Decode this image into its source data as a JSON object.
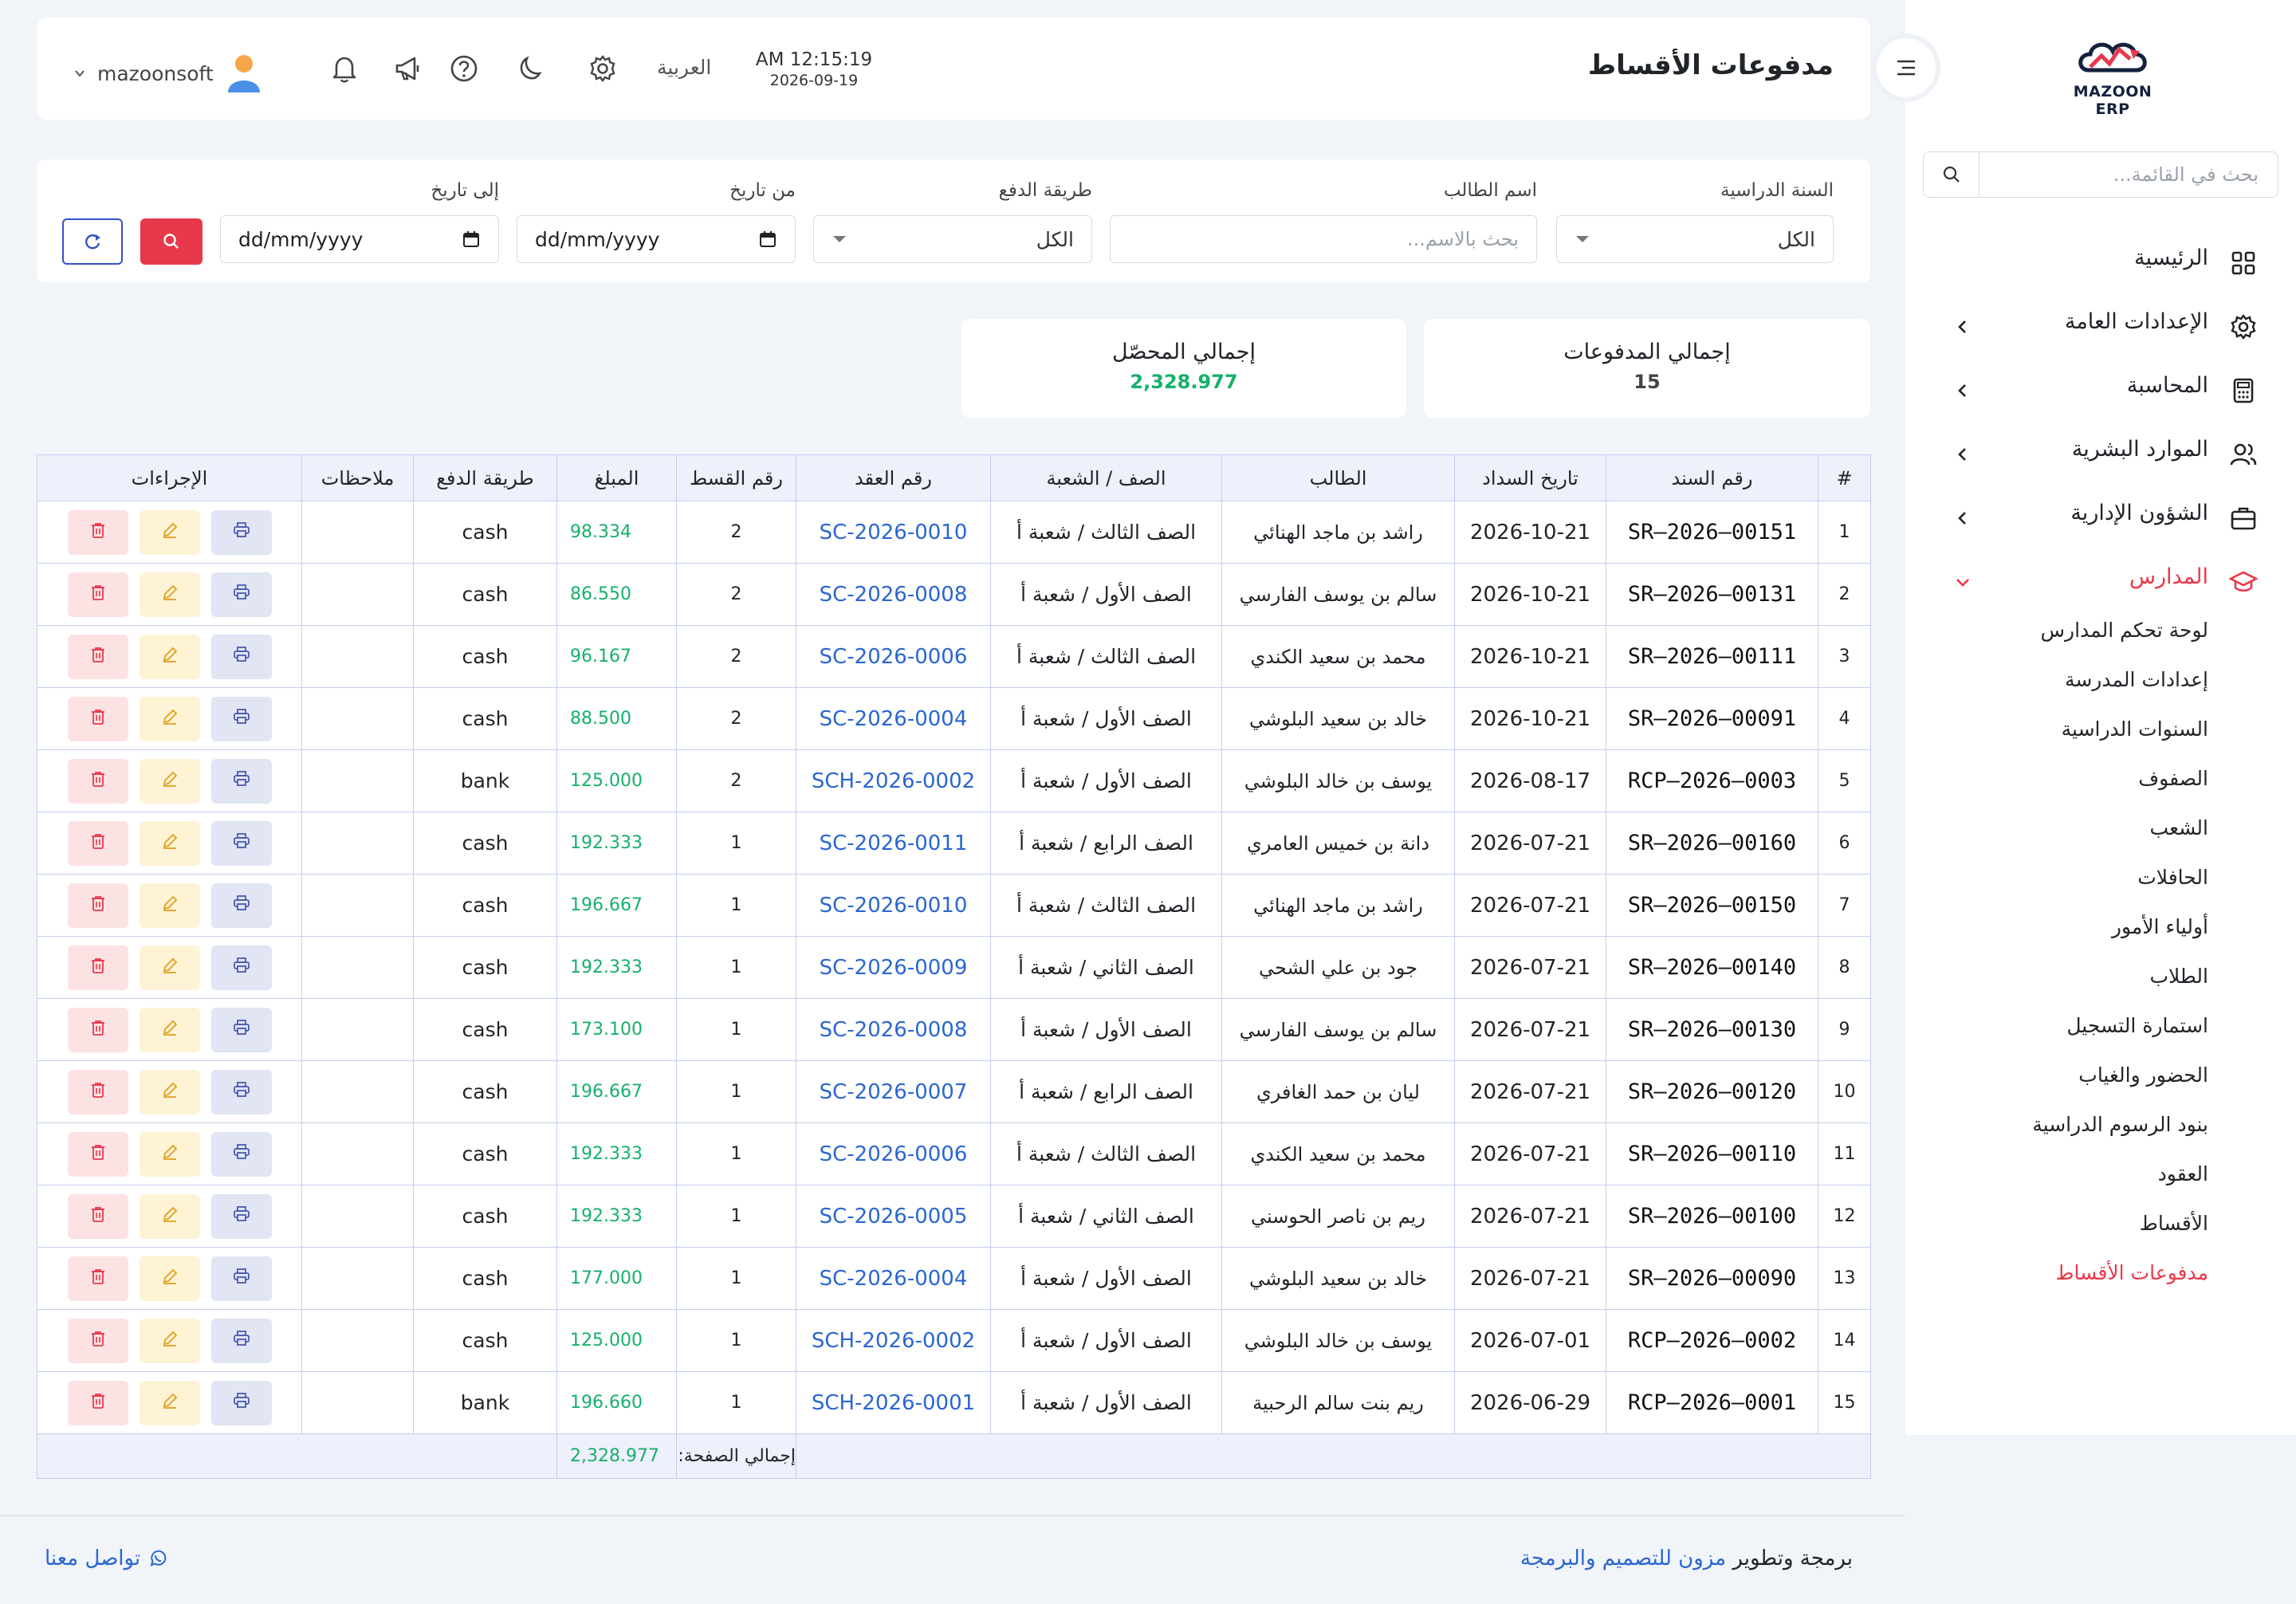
{
  "sidebar": {
    "logo_text": "MAZOON ERP",
    "search_placeholder": "بحث في القائمة...",
    "items": [
      {
        "label": "الرئيسية",
        "icon": "grid-icon"
      },
      {
        "label": "الإعدادات العامة",
        "icon": "gear-icon"
      },
      {
        "label": "المحاسبة",
        "icon": "calculator-icon"
      },
      {
        "label": "الموارد البشرية",
        "icon": "users-icon"
      },
      {
        "label": "الشؤون الإدارية",
        "icon": "briefcase-icon"
      },
      {
        "label": "المدارس",
        "icon": "graduation-cap-icon"
      }
    ],
    "sub_items": [
      "لوحة تحكم المدارس",
      "إعدادات المدرسة",
      "السنوات الدراسية",
      "الصفوف",
      "الشعب",
      "الحافلات",
      "أولياء الأمور",
      "الطلاب",
      "استمارة التسجيل",
      "الحضور والغياب",
      "بنود الرسوم الدراسية",
      "العقود",
      "الأقساط",
      "مدفوعات الأقساط"
    ]
  },
  "header": {
    "title": "مدفوعات الأقساط",
    "time": "AM 12:15:19",
    "date": "2026-09-19",
    "language": "العربية",
    "username": "mazoonsoft"
  },
  "filters": {
    "year_label": "السنة الدراسية",
    "year_value": "الكل",
    "student_label": "اسم الطالب",
    "student_placeholder": "بحث بالاسم...",
    "method_label": "طريقة الدفع",
    "method_value": "الكل",
    "from_label": "من تاريخ",
    "from_value": "dd/mm/yyyy",
    "to_label": "إلى تاريخ",
    "to_value": "dd/mm/yyyy"
  },
  "summary": {
    "payments_label": "إجمالي المدفوعات",
    "payments_value": "15",
    "collected_label": "إجمالي المحصّل",
    "collected_value": "2,328.977"
  },
  "table": {
    "headers": [
      "#",
      "رقم السند",
      "تاريخ السداد",
      "الطالب",
      "الصف / الشعبة",
      "رقم العقد",
      "رقم القسط",
      "المبلغ",
      "طريقة الدفع",
      "ملاحظات",
      "الإجراءات"
    ],
    "rows": [
      [
        "1",
        "SR–2026–00151",
        "2026-10-21",
        "راشد بن ماجد الهنائي",
        "الصف الثالث / شعبة أ",
        "SC-2026-0010",
        "2",
        "98.334",
        "cash",
        ""
      ],
      [
        "2",
        "SR–2026–00131",
        "2026-10-21",
        "سالم بن يوسف الفارسي",
        "الصف الأول / شعبة أ",
        "SC-2026-0008",
        "2",
        "86.550",
        "cash",
        ""
      ],
      [
        "3",
        "SR–2026–00111",
        "2026-10-21",
        "محمد بن سعيد الكندي",
        "الصف الثالث / شعبة أ",
        "SC-2026-0006",
        "2",
        "96.167",
        "cash",
        ""
      ],
      [
        "4",
        "SR–2026–00091",
        "2026-10-21",
        "خالد بن سعيد البلوشي",
        "الصف الأول / شعبة أ",
        "SC-2026-0004",
        "2",
        "88.500",
        "cash",
        ""
      ],
      [
        "5",
        "RCP–2026–0003",
        "2026-08-17",
        "يوسف بن خالد البلوشي",
        "الصف الأول / شعبة أ",
        "SCH-2026-0002",
        "2",
        "125.000",
        "bank",
        ""
      ],
      [
        "6",
        "SR–2026–00160",
        "2026-07-21",
        "دانة بن خميس العامري",
        "الصف الرابع / شعبة أ",
        "SC-2026-0011",
        "1",
        "192.333",
        "cash",
        ""
      ],
      [
        "7",
        "SR–2026–00150",
        "2026-07-21",
        "راشد بن ماجد الهنائي",
        "الصف الثالث / شعبة أ",
        "SC-2026-0010",
        "1",
        "196.667",
        "cash",
        ""
      ],
      [
        "8",
        "SR–2026–00140",
        "2026-07-21",
        "جود بن علي الشحي",
        "الصف الثاني / شعبة أ",
        "SC-2026-0009",
        "1",
        "192.333",
        "cash",
        ""
      ],
      [
        "9",
        "SR–2026–00130",
        "2026-07-21",
        "سالم بن يوسف الفارسي",
        "الصف الأول / شعبة أ",
        "SC-2026-0008",
        "1",
        "173.100",
        "cash",
        ""
      ],
      [
        "10",
        "SR–2026–00120",
        "2026-07-21",
        "ليان بن حمد الغافري",
        "الصف الرابع / شعبة أ",
        "SC-2026-0007",
        "1",
        "196.667",
        "cash",
        ""
      ],
      [
        "11",
        "SR–2026–00110",
        "2026-07-21",
        "محمد بن سعيد الكندي",
        "الصف الثالث / شعبة أ",
        "SC-2026-0006",
        "1",
        "192.333",
        "cash",
        ""
      ],
      [
        "12",
        "SR–2026–00100",
        "2026-07-21",
        "ريم بن ناصر الحوسني",
        "الصف الثاني / شعبة أ",
        "SC-2026-0005",
        "1",
        "192.333",
        "cash",
        ""
      ],
      [
        "13",
        "SR–2026–00090",
        "2026-07-21",
        "خالد بن سعيد البلوشي",
        "الصف الأول / شعبة أ",
        "SC-2026-0004",
        "1",
        "177.000",
        "cash",
        ""
      ],
      [
        "14",
        "RCP–2026–0002",
        "2026-07-01",
        "يوسف بن خالد البلوشي",
        "الصف الأول / شعبة أ",
        "SCH-2026-0002",
        "1",
        "125.000",
        "cash",
        ""
      ],
      [
        "15",
        "RCP–2026–0001",
        "2026-06-29",
        "ريم بنت سالم الرحبية",
        "الصف الأول / شعبة أ",
        "SCH-2026-0001",
        "1",
        "196.660",
        "bank",
        ""
      ]
    ],
    "footer_label": "إجمالي الصفحة:",
    "footer_total": "2,328.977"
  },
  "footer": {
    "credit_prefix": "برمجة وتطوير",
    "credit_brand": "مزون للتصميم والبرمجة",
    "contact": "تواصل معنا"
  },
  "colors": {
    "accent": "#e8394a",
    "link": "#2a66d1",
    "amount": "#17b06b"
  }
}
